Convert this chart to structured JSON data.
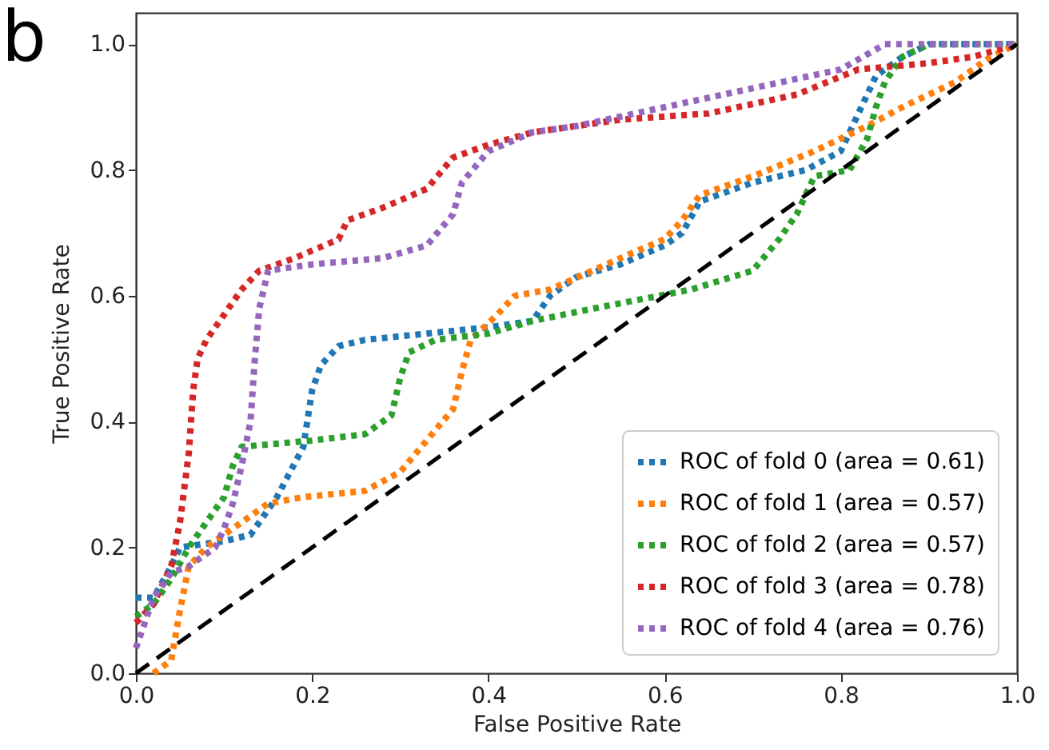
{
  "chart_data": {
    "type": "line",
    "xlabel": "False Positive Rate",
    "ylabel": "True Positive Rate",
    "annotations": [
      "b"
    ],
    "xlim": [
      0,
      1
    ],
    "ylim": [
      0,
      1.05
    ],
    "xticks": [
      {
        "value": 0,
        "label": "0.0"
      },
      {
        "value": 0.2,
        "label": "0.2"
      },
      {
        "value": 0.4,
        "label": "0.4"
      },
      {
        "value": 0.6,
        "label": "0.6"
      },
      {
        "value": 0.8,
        "label": "0.8"
      },
      {
        "value": 1,
        "label": "1.0"
      }
    ],
    "yticks": [
      {
        "value": 0,
        "label": "0.0"
      },
      {
        "value": 0.2,
        "label": "0.2"
      },
      {
        "value": 0.4,
        "label": "0.4"
      },
      {
        "value": 0.6,
        "label": "0.6"
      },
      {
        "value": 0.8,
        "label": "0.8"
      },
      {
        "value": 1,
        "label": "1.0"
      }
    ],
    "grid": false,
    "legend": "bottom right",
    "marker": "none",
    "line_style": "dotted",
    "series": [
      {
        "name": "ROC of fold 0 (area = 0.61)",
        "color": "#1f77b4",
        "x": [
          0,
          0.02,
          0.04,
          0.05,
          0.1,
          0.13,
          0.16,
          0.19,
          0.2,
          0.21,
          0.23,
          0.26,
          0.33,
          0.4,
          0.45,
          0.47,
          0.5,
          0.55,
          0.6,
          0.62,
          0.64,
          0.7,
          0.76,
          0.8,
          0.82,
          0.84,
          0.87,
          0.9,
          1
        ],
        "values": [
          0.12,
          0.12,
          0.17,
          0.2,
          0.21,
          0.22,
          0.28,
          0.36,
          0.45,
          0.49,
          0.52,
          0.53,
          0.54,
          0.55,
          0.56,
          0.6,
          0.63,
          0.65,
          0.68,
          0.7,
          0.75,
          0.78,
          0.8,
          0.83,
          0.89,
          0.95,
          0.98,
          1.0,
          1.0
        ]
      },
      {
        "name": "ROC of fold 1 (area = 0.57)",
        "color": "#ff7f0e",
        "x": [
          0.02,
          0.04,
          0.05,
          0.06,
          0.08,
          0.12,
          0.15,
          0.19,
          0.26,
          0.3,
          0.33,
          0.36,
          0.37,
          0.38,
          0.41,
          0.43,
          0.47,
          0.55,
          0.6,
          0.62,
          0.64,
          0.7,
          0.77,
          0.83,
          0.87,
          0.93,
          0.97,
          1
        ],
        "values": [
          0,
          0.02,
          0.1,
          0.17,
          0.2,
          0.24,
          0.27,
          0.28,
          0.29,
          0.32,
          0.37,
          0.42,
          0.48,
          0.53,
          0.57,
          0.6,
          0.61,
          0.66,
          0.69,
          0.72,
          0.76,
          0.79,
          0.83,
          0.87,
          0.9,
          0.94,
          0.98,
          1
        ]
      },
      {
        "name": "ROC of fold 2 (area = 0.57)",
        "color": "#2ca02c",
        "x": [
          0,
          0.02,
          0.04,
          0.06,
          0.08,
          0.1,
          0.11,
          0.12,
          0.2,
          0.26,
          0.29,
          0.3,
          0.31,
          0.34,
          0.4,
          0.45,
          0.52,
          0.63,
          0.7,
          0.73,
          0.75,
          0.77,
          0.81,
          0.83,
          0.84,
          0.85,
          0.87,
          0.9,
          1
        ],
        "values": [
          0.09,
          0.11,
          0.15,
          0.2,
          0.24,
          0.28,
          0.33,
          0.36,
          0.37,
          0.38,
          0.41,
          0.47,
          0.51,
          0.53,
          0.54,
          0.56,
          0.58,
          0.61,
          0.64,
          0.69,
          0.73,
          0.79,
          0.8,
          0.85,
          0.9,
          0.94,
          0.98,
          1.0,
          1
        ]
      },
      {
        "name": "ROC of fold 3 (area = 0.78)",
        "color": "#d62728",
        "x": [
          0,
          0.02,
          0.04,
          0.05,
          0.06,
          0.065,
          0.07,
          0.08,
          0.1,
          0.12,
          0.14,
          0.18,
          0.23,
          0.24,
          0.28,
          0.33,
          0.36,
          0.4,
          0.45,
          0.55,
          0.65,
          0.75,
          0.82,
          0.9,
          0.95,
          1
        ],
        "values": [
          0.08,
          0.11,
          0.17,
          0.24,
          0.35,
          0.45,
          0.5,
          0.53,
          0.57,
          0.61,
          0.64,
          0.66,
          0.69,
          0.72,
          0.74,
          0.77,
          0.82,
          0.84,
          0.86,
          0.88,
          0.89,
          0.92,
          0.96,
          0.97,
          0.98,
          1
        ]
      },
      {
        "name": "ROC of fold 4 (area = 0.76)",
        "color": "#9467bd",
        "x": [
          0,
          0.01,
          0.02,
          0.04,
          0.06,
          0.09,
          0.1,
          0.11,
          0.12,
          0.13,
          0.135,
          0.14,
          0.15,
          0.2,
          0.28,
          0.33,
          0.36,
          0.37,
          0.4,
          0.45,
          0.5,
          0.6,
          0.7,
          0.8,
          0.85,
          1
        ],
        "values": [
          0.04,
          0.08,
          0.12,
          0.16,
          0.17,
          0.2,
          0.23,
          0.27,
          0.33,
          0.4,
          0.5,
          0.58,
          0.64,
          0.65,
          0.66,
          0.68,
          0.73,
          0.78,
          0.83,
          0.86,
          0.87,
          0.9,
          0.93,
          0.96,
          1.0,
          1
        ]
      },
      {
        "color": "#000000",
        "line_style": "dashed",
        "x": [
          0,
          1
        ],
        "values": [
          0,
          1
        ]
      }
    ]
  }
}
